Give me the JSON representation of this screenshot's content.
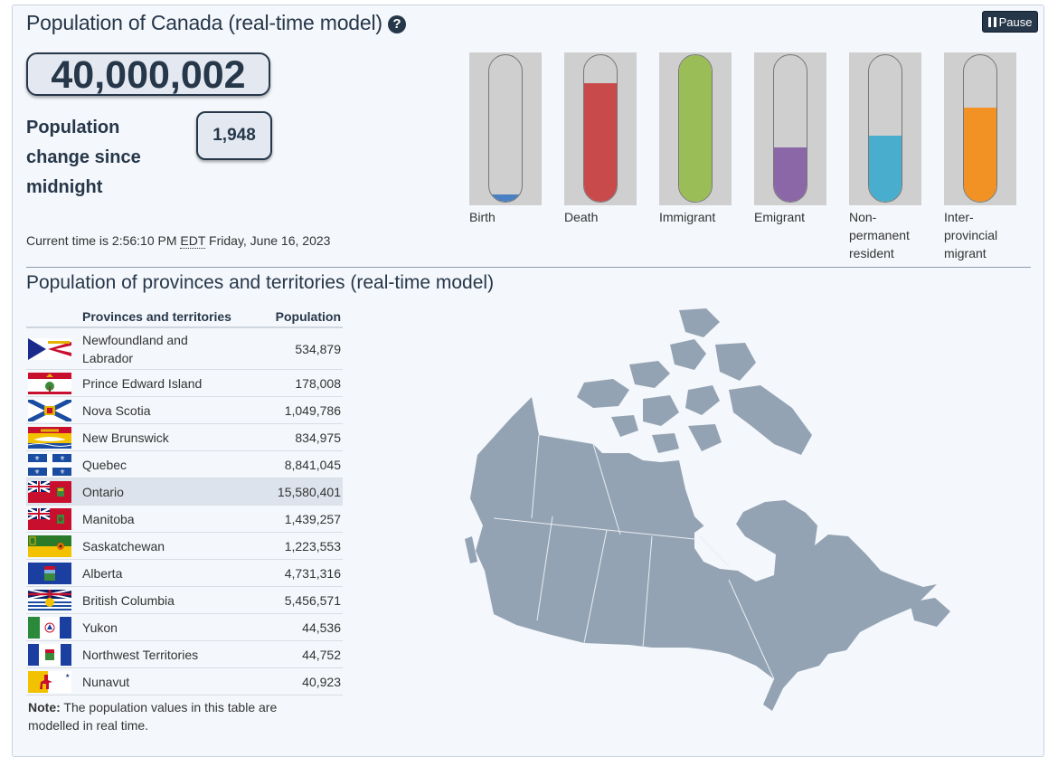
{
  "header": {
    "title": "Population of Canada (real-time model)",
    "help_icon": "question-circle-icon",
    "pause_label": "Pause",
    "pause_icon": "pause-icon"
  },
  "population": {
    "total": "40,000,002",
    "change_label": "Population change since midnight",
    "change_value": "1,948",
    "current_time_prefix": "Current time is 2:56:10 PM",
    "current_time_zone": "EDT",
    "current_time_date": "Friday, June 16, 2023"
  },
  "gauges": [
    {
      "label": "Birth",
      "level": 0.05,
      "color": "#4a7fc1"
    },
    {
      "label": "Death",
      "level": 0.81,
      "color": "#c84a4a"
    },
    {
      "label": "Immigrant",
      "level": 1.0,
      "color": "#9bbd58"
    },
    {
      "label": "Emigrant",
      "level": 0.37,
      "color": "#8b67a8"
    },
    {
      "label": "Non-permanent resident",
      "label_lines": [
        "Non-",
        "permanent",
        "resident"
      ],
      "level": 0.45,
      "color": "#49aecd"
    },
    {
      "label": "Inter-provincial migrant",
      "label_lines": [
        "Inter-",
        "provincial",
        "migrant"
      ],
      "level": 0.64,
      "color": "#f39224"
    }
  ],
  "provinces": {
    "title": "Population of provinces and territories (real-time model)",
    "col_name": "Provinces and territories",
    "col_pop": "Population",
    "highlighted": "Ontario",
    "rows": [
      {
        "name": "Newfoundland and Labrador",
        "population": "534,879",
        "flag_icon": "newfoundland-flag-icon"
      },
      {
        "name": "Prince Edward Island",
        "population": "178,008",
        "flag_icon": "pei-flag-icon"
      },
      {
        "name": "Nova Scotia",
        "population": "1,049,786",
        "flag_icon": "nova-scotia-flag-icon"
      },
      {
        "name": "New Brunswick",
        "population": "834,975",
        "flag_icon": "new-brunswick-flag-icon"
      },
      {
        "name": "Quebec",
        "population": "8,841,045",
        "flag_icon": "quebec-flag-icon"
      },
      {
        "name": "Ontario",
        "population": "15,580,401",
        "flag_icon": "ontario-flag-icon"
      },
      {
        "name": "Manitoba",
        "population": "1,439,257",
        "flag_icon": "manitoba-flag-icon"
      },
      {
        "name": "Saskatchewan",
        "population": "1,223,553",
        "flag_icon": "saskatchewan-flag-icon"
      },
      {
        "name": "Alberta",
        "population": "4,731,316",
        "flag_icon": "alberta-flag-icon"
      },
      {
        "name": "British Columbia",
        "population": "5,456,571",
        "flag_icon": "british-columbia-flag-icon"
      },
      {
        "name": "Yukon",
        "population": "44,536",
        "flag_icon": "yukon-flag-icon"
      },
      {
        "name": "Northwest Territories",
        "population": "44,752",
        "flag_icon": "northwest-territories-flag-icon"
      },
      {
        "name": "Nunavut",
        "population": "40,923",
        "flag_icon": "nunavut-flag-icon"
      }
    ]
  },
  "note": {
    "label": "Note:",
    "text": "The population values in this table are modelled in real time."
  },
  "map": {
    "icon": "canada-map-icon",
    "color": "#94a3b3",
    "highlight_color": "#7f90a3"
  }
}
